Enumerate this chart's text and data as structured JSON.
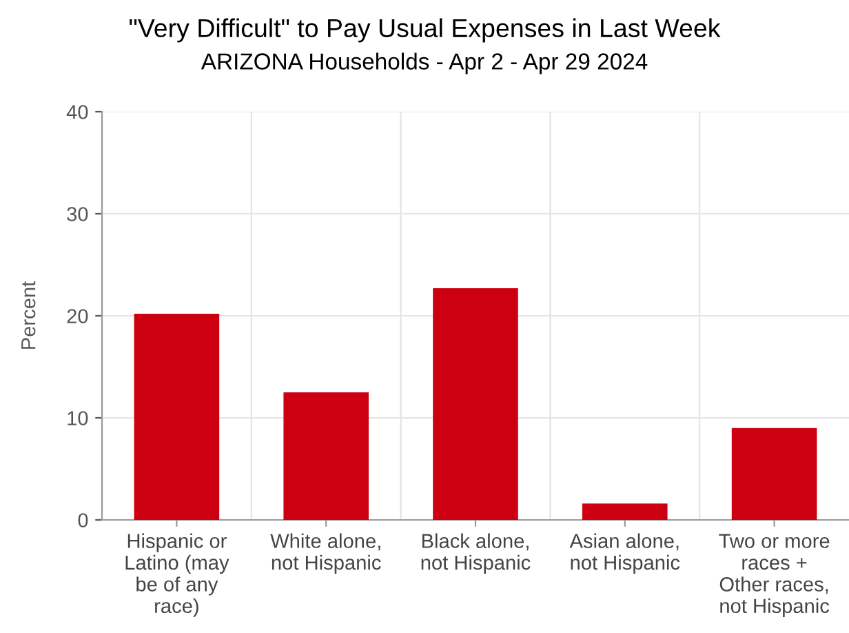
{
  "chart_data": {
    "type": "bar",
    "title": "\"Very Difficult\" to Pay Usual Expenses in Last Week",
    "subtitle": "ARIZONA Households - Apr 2 - Apr 29 2024",
    "ylabel": "Percent",
    "categories": [
      "Hispanic or\nLatino (may\nbe of any\nrace)",
      "White alone,\nnot Hispanic",
      "Black alone,\nnot Hispanic",
      "Asian alone,\nnot Hispanic",
      "Two or more\nraces +\nOther races,\nnot Hispanic"
    ],
    "values": [
      20.2,
      12.5,
      22.7,
      1.6,
      9.0
    ],
    "color": "#cc0010",
    "ylim": [
      0,
      40
    ],
    "yticks": [
      0,
      10,
      20,
      30,
      40
    ],
    "grid": true
  }
}
